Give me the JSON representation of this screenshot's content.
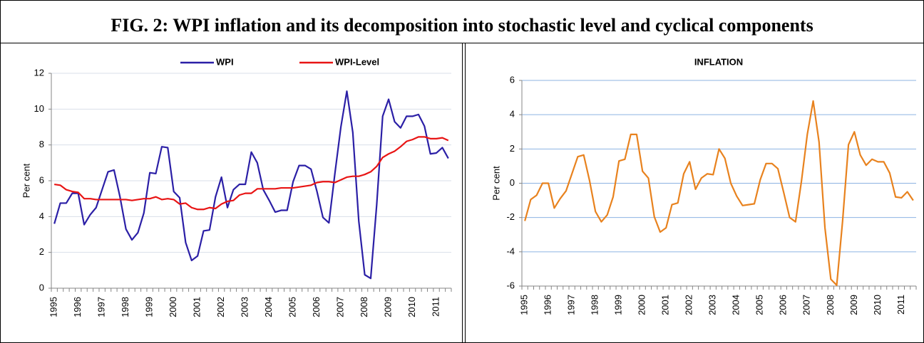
{
  "figure_title": "FIG. 2: WPI inflation and its decomposition into stochastic level and cyclical components",
  "chart_data": [
    {
      "type": "line",
      "ylabel": "Per cent",
      "legend": "top",
      "grid": true,
      "grid_color": "#d9dfe9",
      "categories": [
        "1995",
        null,
        null,
        null,
        "1996",
        null,
        null,
        null,
        "1997",
        null,
        null,
        null,
        "1998",
        null,
        null,
        null,
        "1999",
        null,
        null,
        null,
        "2000",
        null,
        null,
        null,
        "2001",
        null,
        null,
        null,
        "2002",
        null,
        null,
        null,
        "2003",
        null,
        null,
        null,
        "2004",
        null,
        null,
        null,
        "2005",
        null,
        null,
        null,
        "2006",
        null,
        null,
        null,
        "2007",
        null,
        null,
        null,
        "2008",
        null,
        null,
        null,
        "2009",
        null,
        null,
        null,
        "2010",
        null,
        null,
        null,
        "2011",
        null,
        null
      ],
      "ylim": [
        0,
        12
      ],
      "yticks": [
        0,
        2,
        4,
        6,
        8,
        10,
        12
      ],
      "series": [
        {
          "name": "WPI",
          "color": "#2b1fa6",
          "values": [
            3.6,
            4.75,
            4.75,
            5.3,
            5.3,
            3.55,
            4.1,
            4.5,
            5.5,
            6.5,
            6.6,
            5.1,
            3.3,
            2.7,
            3.1,
            4.2,
            6.45,
            6.4,
            7.9,
            7.85,
            5.4,
            5.05,
            2.55,
            1.55,
            1.8,
            3.2,
            3.25,
            5.1,
            6.2,
            4.5,
            5.5,
            5.8,
            5.8,
            7.6,
            7.0,
            5.5,
            4.9,
            4.25,
            4.35,
            4.35,
            5.95,
            6.85,
            6.85,
            6.65,
            5.4,
            3.95,
            3.65,
            6.4,
            9.0,
            11.0,
            8.7,
            3.75,
            0.75,
            0.55,
            4.65,
            9.6,
            10.55,
            9.3,
            8.95,
            9.6,
            9.6,
            9.7,
            9.05,
            7.5,
            7.55,
            7.85,
            7.25
          ]
        },
        {
          "name": "WPI-Level",
          "color": "#e81414",
          "values": [
            5.8,
            5.75,
            5.5,
            5.4,
            5.35,
            5.0,
            5.0,
            4.95,
            4.95,
            4.95,
            4.95,
            4.95,
            4.95,
            4.9,
            4.95,
            5.0,
            5.0,
            5.1,
            4.95,
            5.0,
            4.95,
            4.7,
            4.75,
            4.5,
            4.4,
            4.4,
            4.5,
            4.45,
            4.7,
            4.85,
            4.9,
            5.2,
            5.3,
            5.3,
            5.55,
            5.55,
            5.55,
            5.55,
            5.6,
            5.6,
            5.6,
            5.65,
            5.7,
            5.75,
            5.9,
            5.95,
            5.95,
            5.9,
            6.05,
            6.2,
            6.25,
            6.25,
            6.35,
            6.5,
            6.8,
            7.3,
            7.5,
            7.65,
            7.9,
            8.2,
            8.3,
            8.45,
            8.45,
            8.35,
            8.35,
            8.4,
            8.25
          ]
        }
      ]
    },
    {
      "type": "line",
      "title": "INFLATION",
      "ylabel": "Per cent",
      "grid": true,
      "grid_color": "#8db3e2",
      "categories": [
        "1995",
        null,
        null,
        null,
        "1996",
        null,
        null,
        null,
        "1997",
        null,
        null,
        null,
        "1998",
        null,
        null,
        null,
        "1999",
        null,
        null,
        null,
        "2000",
        null,
        null,
        null,
        "2001",
        null,
        null,
        null,
        "2002",
        null,
        null,
        null,
        "2003",
        null,
        null,
        null,
        "2004",
        null,
        null,
        null,
        "2005",
        null,
        null,
        null,
        "2006",
        null,
        null,
        null,
        "2007",
        null,
        null,
        null,
        "2008",
        null,
        null,
        null,
        "2009",
        null,
        null,
        null,
        "2010",
        null,
        null,
        null,
        "2011",
        null,
        null
      ],
      "ylim": [
        -6,
        6
      ],
      "yticks": [
        -6,
        -4,
        -2,
        0,
        2,
        4,
        6
      ],
      "series": [
        {
          "color": "#e8821e",
          "values": [
            -2.2,
            -0.95,
            -0.7,
            0.0,
            0.0,
            -1.45,
            -0.9,
            -0.45,
            0.55,
            1.55,
            1.65,
            0.15,
            -1.65,
            -2.25,
            -1.85,
            -0.8,
            1.3,
            1.4,
            2.85,
            2.85,
            0.7,
            0.3,
            -1.95,
            -2.85,
            -2.6,
            -1.25,
            -1.15,
            0.55,
            1.25,
            -0.35,
            0.3,
            0.55,
            0.5,
            2.0,
            1.45,
            0.0,
            -0.75,
            -1.3,
            -1.25,
            -1.2,
            0.2,
            1.15,
            1.15,
            0.85,
            -0.55,
            -2.0,
            -2.25,
            0.1,
            2.85,
            4.8,
            2.4,
            -2.6,
            -5.6,
            -5.95,
            -2.2,
            2.25,
            3.0,
            1.65,
            1.05,
            1.4,
            1.25,
            1.25,
            0.6,
            -0.8,
            -0.85,
            -0.5,
            -1.0
          ]
        }
      ]
    }
  ]
}
